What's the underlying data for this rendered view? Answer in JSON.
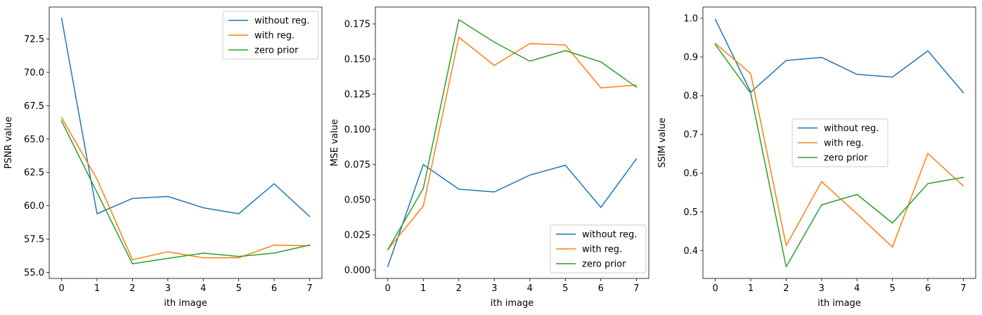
{
  "colors": {
    "series": [
      "#1f77b4",
      "#ff7f0e",
      "#2ca02c"
    ]
  },
  "chart_data": [
    {
      "type": "line",
      "xlabel": "ith image",
      "ylabel": "PSNR value",
      "x": [
        0,
        1,
        2,
        3,
        4,
        5,
        6,
        7
      ],
      "xticks": [
        "0",
        "1",
        "2",
        "3",
        "4",
        "5",
        "6",
        "7"
      ],
      "xlim": [
        -0.35,
        7.35
      ],
      "ylim": [
        54.55,
        74.9
      ],
      "yticks": [
        "55.0",
        "57.5",
        "60.0",
        "62.5",
        "65.0",
        "67.5",
        "70.0",
        "72.5"
      ],
      "legend_position": "upper right",
      "series": [
        {
          "name": "without reg.",
          "values": [
            74.05,
            59.4,
            60.55,
            60.7,
            59.85,
            59.4,
            61.65,
            59.2
          ]
        },
        {
          "name": "with reg.",
          "values": [
            66.6,
            62.0,
            55.95,
            56.55,
            56.1,
            56.1,
            57.05,
            57.0
          ]
        },
        {
          "name": "zero prior",
          "values": [
            66.35,
            61.0,
            55.65,
            56.05,
            56.45,
            56.2,
            56.45,
            57.05
          ]
        }
      ]
    },
    {
      "type": "line",
      "xlabel": "ith image",
      "ylabel": "MSE value",
      "x": [
        0,
        1,
        2,
        3,
        4,
        5,
        6,
        7
      ],
      "xticks": [
        "0",
        "1",
        "2",
        "3",
        "4",
        "5",
        "6",
        "7"
      ],
      "xlim": [
        -0.35,
        7.35
      ],
      "ylim": [
        -0.006,
        0.187
      ],
      "yticks": [
        "0.000",
        "0.025",
        "0.050",
        "0.075",
        "0.100",
        "0.125",
        "0.150",
        "0.175"
      ],
      "legend_position": "lower right",
      "series": [
        {
          "name": "without reg.",
          "values": [
            0.0025,
            0.075,
            0.0575,
            0.0555,
            0.0675,
            0.0745,
            0.0445,
            0.079
          ]
        },
        {
          "name": "with reg.",
          "values": [
            0.0145,
            0.0455,
            0.1655,
            0.1455,
            0.161,
            0.16,
            0.1295,
            0.1315
          ]
        },
        {
          "name": "zero prior",
          "values": [
            0.0145,
            0.058,
            0.178,
            0.162,
            0.1485,
            0.156,
            0.148,
            0.13
          ]
        }
      ]
    },
    {
      "type": "line",
      "xlabel": "ith image",
      "ylabel": "SSIM value",
      "x": [
        0,
        1,
        2,
        3,
        4,
        5,
        6,
        7
      ],
      "xticks": [
        "0",
        "1",
        "2",
        "3",
        "4",
        "5",
        "6",
        "7"
      ],
      "xlim": [
        -0.35,
        7.35
      ],
      "ylim": [
        0.328,
        1.029
      ],
      "yticks": [
        "0.4",
        "0.5",
        "0.6",
        "0.7",
        "0.8",
        "0.9",
        "1.0"
      ],
      "legend_position": "center right",
      "series": [
        {
          "name": "without reg.",
          "values": [
            0.997,
            0.809,
            0.891,
            0.899,
            0.855,
            0.848,
            0.916,
            0.808
          ]
        },
        {
          "name": "with reg.",
          "values": [
            0.935,
            0.857,
            0.413,
            0.578,
            0.495,
            0.409,
            0.651,
            0.567
          ]
        },
        {
          "name": "zero prior",
          "values": [
            0.932,
            0.806,
            0.358,
            0.518,
            0.545,
            0.471,
            0.573,
            0.589
          ]
        }
      ]
    }
  ]
}
